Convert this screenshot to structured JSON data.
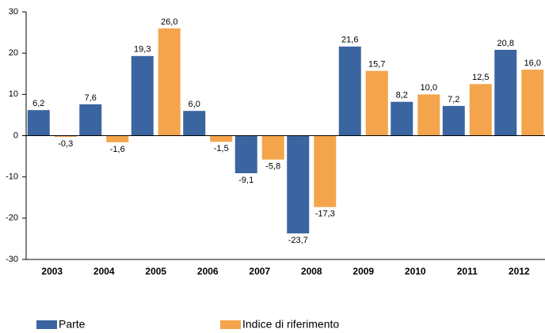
{
  "chart_data": {
    "type": "bar",
    "categories": [
      "2003",
      "2004",
      "2005",
      "2006",
      "2007",
      "2008",
      "2009",
      "2010",
      "2011",
      "2012"
    ],
    "series": [
      {
        "name": "Parte",
        "color": "#3b65a0",
        "values": [
          6.2,
          7.6,
          19.3,
          6.0,
          -9.1,
          -23.7,
          21.6,
          8.2,
          7.2,
          20.8
        ],
        "value_labels": [
          "6,2",
          "7,6",
          "19,3",
          "6,0",
          "-9,1",
          "-23,7",
          "21,6",
          "8,2",
          "7,2",
          "20,8"
        ]
      },
      {
        "name": "Indice di riferimento",
        "color": "#f4a54c",
        "values": [
          -0.3,
          -1.6,
          26.0,
          -1.5,
          -5.8,
          -17.3,
          15.7,
          10.0,
          12.5,
          16.0
        ],
        "value_labels": [
          "-0,3",
          "-1,6",
          "26,0",
          "-1,5",
          "-5,8",
          "-17,3",
          "15,7",
          "10,0",
          "12,5",
          "16,0"
        ]
      }
    ],
    "ylim": [
      -30,
      30
    ],
    "yticks": [
      -30,
      -20,
      -10,
      0,
      10,
      20,
      30
    ],
    "legend": "bottom"
  }
}
